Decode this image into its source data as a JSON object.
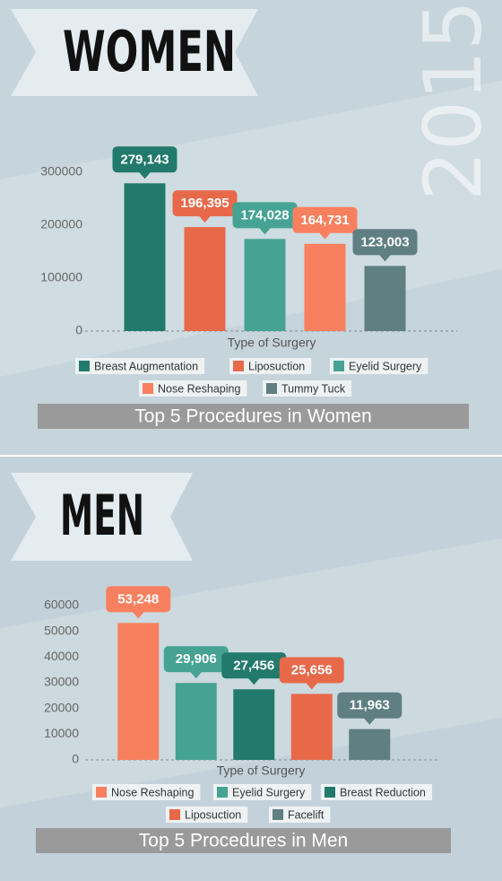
{
  "year": "2015",
  "chart_data": [
    {
      "type": "bar",
      "banner": "WOMEN",
      "title": "Top 5 Procedures in Women",
      "x_label": "Type of Surgery",
      "categories": [
        "Breast Augmentation",
        "Liposuction",
        "Eyelid Surgery",
        "Nose Reshaping",
        "Tummy Tuck"
      ],
      "values": [
        279143,
        196395,
        174028,
        164731,
        123003
      ],
      "value_labels": [
        "279,143",
        "196,395",
        "174,028",
        "164,731",
        "123,003"
      ],
      "colors": [
        "#217a6c",
        "#e8694a",
        "#46a394",
        "#f8805f",
        "#5f7f82"
      ],
      "ylim": [
        0,
        300000
      ],
      "yticks": [
        0,
        100000,
        200000,
        300000
      ],
      "grid": false
    },
    {
      "type": "bar",
      "banner": "MEN",
      "title": "Top 5 Procedures in Men",
      "x_label": "Type of Surgery",
      "categories": [
        "Nose Reshaping",
        "Eyelid Surgery",
        "Breast Reduction",
        "Liposuction",
        "Facelift"
      ],
      "values": [
        53248,
        29906,
        27456,
        25656,
        11963
      ],
      "value_labels": [
        "53,248",
        "29,906",
        "27,456",
        "25,656",
        "11,963"
      ],
      "colors": [
        "#f8805f",
        "#46a394",
        "#217a6c",
        "#e8694a",
        "#5f7f82"
      ],
      "ylim": [
        0,
        60000
      ],
      "yticks": [
        0,
        10000,
        20000,
        30000,
        40000,
        50000,
        60000
      ],
      "grid": false
    }
  ]
}
